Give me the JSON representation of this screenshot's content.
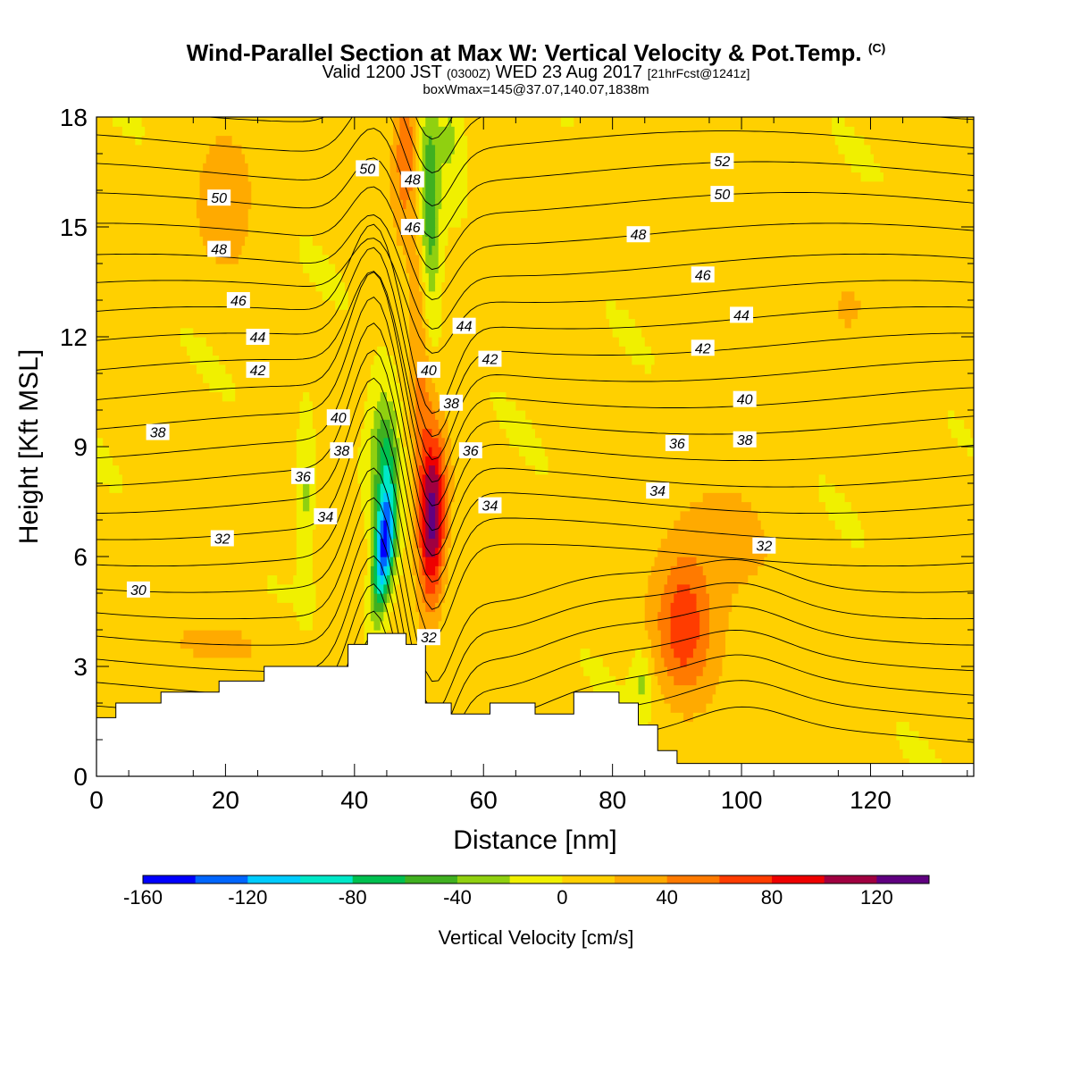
{
  "title": {
    "main": "Wind-Parallel Section at Max W: Vertical Velocity & Pot.Temp.",
    "copyright": "(C)",
    "valid": "Valid 1200 JST",
    "utc": "(0300Z)",
    "date": "WED 23 Aug 2017",
    "fcst": "[21hrFcst@1241z]",
    "box": "boxWmax=145@37.07,140.07,1838m"
  },
  "chart_data": {
    "type": "contour",
    "xlabel": "Distance [nm]",
    "ylabel": "Height [Kft MSL]",
    "xlim": [
      0,
      136
    ],
    "ylim": [
      0,
      18
    ],
    "xticks": [
      0,
      20,
      40,
      60,
      80,
      100,
      120
    ],
    "yticks": [
      0,
      3,
      6,
      9,
      12,
      15,
      18
    ],
    "colorbar": {
      "label": "Vertical Velocity [cm/s]",
      "ticks": [
        -160,
        -120,
        -80,
        -40,
        0,
        40,
        80,
        120
      ],
      "bounds": [
        -160,
        140
      ],
      "step": 20,
      "colors": [
        "#0000ff",
        "#0066ff",
        "#00ccff",
        "#00e8c8",
        "#00c050",
        "#40b020",
        "#90d010",
        "#f0f000",
        "#ffd000",
        "#ffaa00",
        "#ff7a00",
        "#ff3c00",
        "#ee0000",
        "#a00040",
        "#600080"
      ]
    },
    "terrain_kft": [
      [
        0,
        1.6
      ],
      [
        3,
        1.6
      ],
      [
        3,
        2.0
      ],
      [
        10,
        2.0
      ],
      [
        10,
        2.3
      ],
      [
        19,
        2.3
      ],
      [
        19,
        2.6
      ],
      [
        26,
        2.6
      ],
      [
        26,
        3.0
      ],
      [
        39,
        3.0
      ],
      [
        39,
        3.6
      ],
      [
        42,
        3.6
      ],
      [
        42,
        3.9
      ],
      [
        48,
        3.9
      ],
      [
        48,
        3.6
      ],
      [
        51,
        3.6
      ],
      [
        51,
        2.0
      ],
      [
        55,
        2.0
      ],
      [
        55,
        1.7
      ],
      [
        61,
        1.7
      ],
      [
        61,
        2.0
      ],
      [
        68,
        2.0
      ],
      [
        68,
        1.7
      ],
      [
        74,
        1.7
      ],
      [
        74,
        2.3
      ],
      [
        81,
        2.3
      ],
      [
        81,
        2.0
      ],
      [
        84,
        2.0
      ],
      [
        84,
        1.4
      ],
      [
        87,
        1.4
      ],
      [
        87,
        0.7
      ],
      [
        90,
        0.7
      ],
      [
        90,
        0.35
      ],
      [
        136,
        0.35
      ]
    ],
    "velocity_features": [
      {
        "label": "downdraft core",
        "x": 45.5,
        "y": 6.2,
        "w": -140
      },
      {
        "label": "downdraft upper",
        "x": 44.5,
        "y": 9.0,
        "w": -60
      },
      {
        "label": "downdraft aloft",
        "x": 50.5,
        "y": 15.0,
        "w": -60
      },
      {
        "label": "updraft core",
        "x": 52.0,
        "y": 7.0,
        "w": 120
      },
      {
        "label": "updraft aloft",
        "x": 48.5,
        "y": 16.5,
        "w": 50
      },
      {
        "label": "downstream updraft",
        "x": 91.0,
        "y": 4.0,
        "w": 55
      },
      {
        "label": "weak downdraft",
        "x": 32.5,
        "y": 7.5,
        "w": -25
      },
      {
        "label": "weak downdraft lee",
        "x": 84.5,
        "y": 2.5,
        "w": -25
      }
    ],
    "isentrope_labels": [
      {
        "text": "52",
        "x": 97.0,
        "y": 16.8
      },
      {
        "text": "50",
        "x": 97.0,
        "y": 15.9
      },
      {
        "text": "50",
        "x": 19.0,
        "y": 15.8
      },
      {
        "text": "50",
        "x": 42.0,
        "y": 16.6
      },
      {
        "text": "48",
        "x": 49.0,
        "y": 16.3
      },
      {
        "text": "48",
        "x": 19.0,
        "y": 14.4
      },
      {
        "text": "48",
        "x": 84.0,
        "y": 14.8
      },
      {
        "text": "46",
        "x": 49.0,
        "y": 15.0
      },
      {
        "text": "46",
        "x": 22.0,
        "y": 13.0
      },
      {
        "text": "46",
        "x": 94.0,
        "y": 13.7
      },
      {
        "text": "44",
        "x": 25.0,
        "y": 12.0
      },
      {
        "text": "44",
        "x": 57.0,
        "y": 12.3
      },
      {
        "text": "44",
        "x": 100.0,
        "y": 12.6
      },
      {
        "text": "42",
        "x": 25.0,
        "y": 11.1
      },
      {
        "text": "42",
        "x": 61.0,
        "y": 11.4
      },
      {
        "text": "42",
        "x": 94.0,
        "y": 11.7
      },
      {
        "text": "40",
        "x": 37.5,
        "y": 9.8
      },
      {
        "text": "40",
        "x": 51.5,
        "y": 11.1
      },
      {
        "text": "40",
        "x": 100.5,
        "y": 10.3
      },
      {
        "text": "38",
        "x": 9.5,
        "y": 9.4
      },
      {
        "text": "38",
        "x": 38.0,
        "y": 8.9
      },
      {
        "text": "38",
        "x": 55.0,
        "y": 10.2
      },
      {
        "text": "38",
        "x": 100.5,
        "y": 9.2
      },
      {
        "text": "36",
        "x": 32.0,
        "y": 8.2
      },
      {
        "text": "36",
        "x": 58.0,
        "y": 8.9
      },
      {
        "text": "36",
        "x": 90.0,
        "y": 9.1
      },
      {
        "text": "34",
        "x": 35.5,
        "y": 7.1
      },
      {
        "text": "34",
        "x": 61.0,
        "y": 7.4
      },
      {
        "text": "34",
        "x": 87.0,
        "y": 7.8
      },
      {
        "text": "32",
        "x": 19.5,
        "y": 6.5
      },
      {
        "text": "32",
        "x": 51.5,
        "y": 3.8
      },
      {
        "text": "32",
        "x": 103.5,
        "y": 6.3
      },
      {
        "text": "30",
        "x": 6.5,
        "y": 5.1
      }
    ]
  }
}
